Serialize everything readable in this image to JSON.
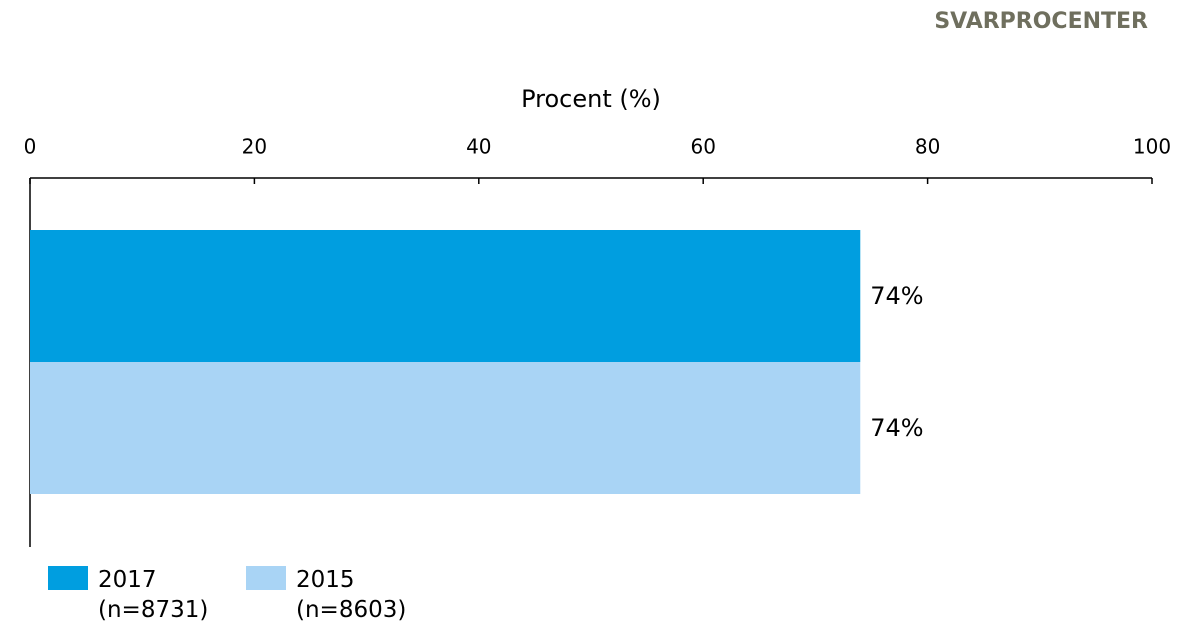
{
  "chart_data": {
    "type": "barh",
    "title": "SVARPROCENTER",
    "xlabel": "Procent (%)",
    "categories": [
      null
    ],
    "series": [
      {
        "name": "2017\n(n=8731)",
        "color": "#009ee0",
        "values": [
          74
        ],
        "value_labels": [
          "74%"
        ]
      },
      {
        "name": "2015\n(n=8603)",
        "color": "#a9d4f5",
        "values": [
          74
        ],
        "value_labels": [
          "74%"
        ]
      }
    ],
    "xlim": [
      0,
      100
    ],
    "xticks": [
      0,
      20,
      40,
      60,
      80,
      100
    ],
    "legend": "bottom-left"
  }
}
